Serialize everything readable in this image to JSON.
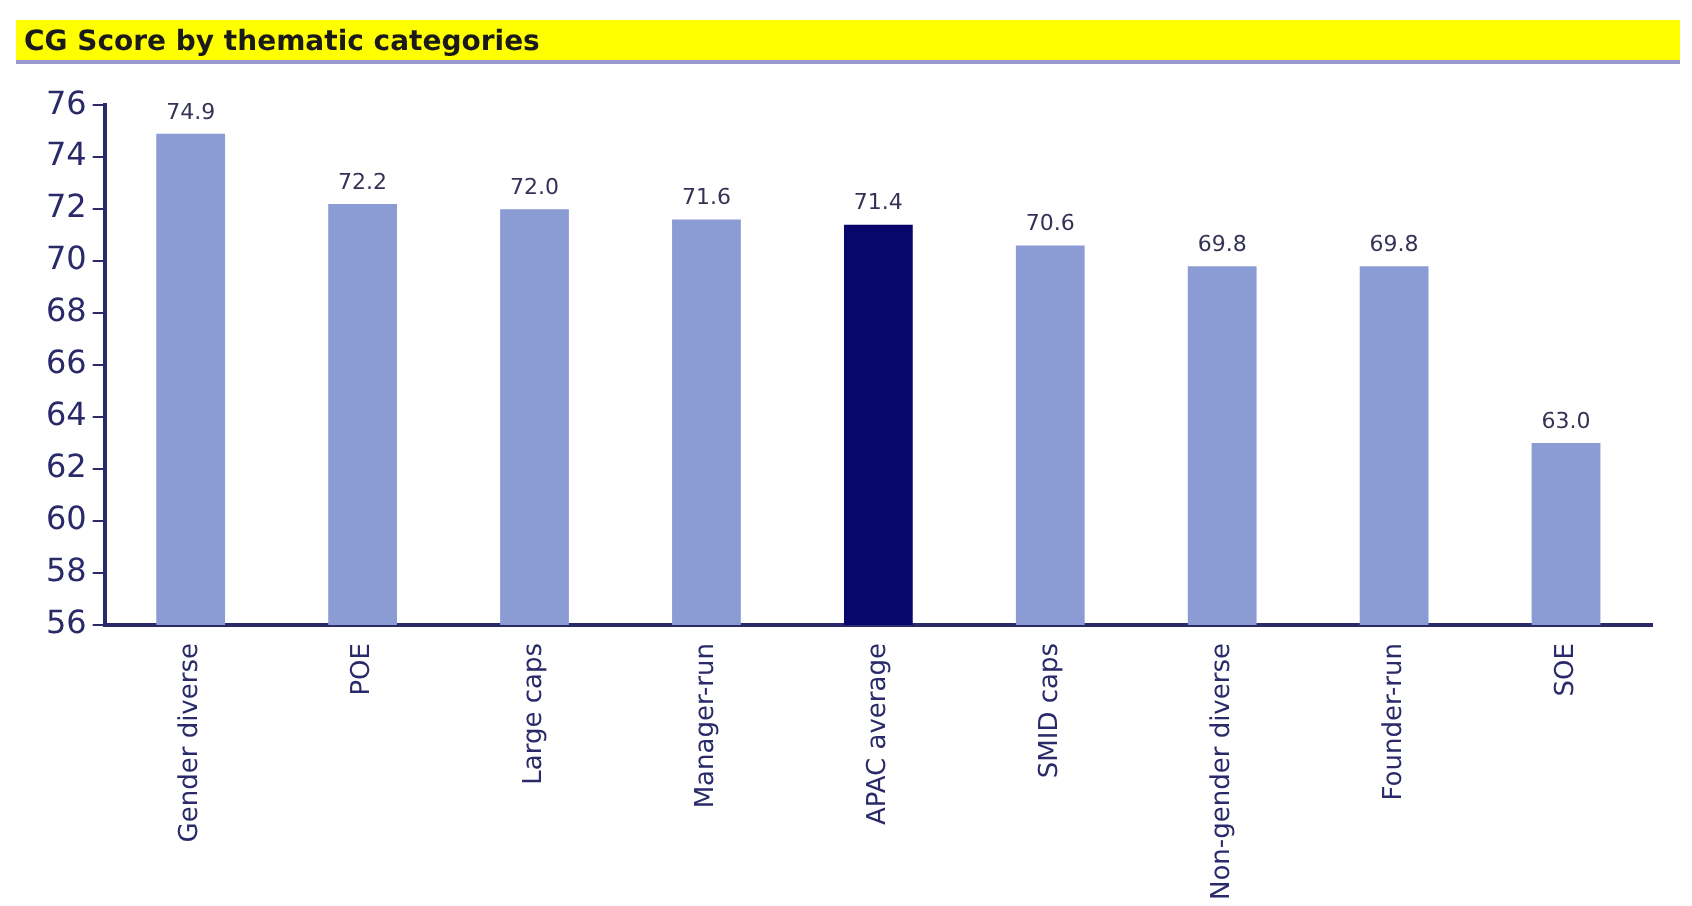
{
  "chart_data": {
    "type": "bar",
    "title": "CG Score by thematic categories",
    "categories": [
      "Gender diverse",
      "POE",
      "Large caps",
      "Manager-run",
      "APAC average",
      "SMID caps",
      "Non-gender diverse",
      "Founder-run",
      "SOE"
    ],
    "values": [
      74.9,
      72.2,
      72.0,
      71.6,
      71.4,
      70.6,
      69.8,
      69.8,
      63.0
    ],
    "value_labels": [
      "74.9",
      "72.2",
      "72.0",
      "71.6",
      "71.4",
      "70.6",
      "69.8",
      "69.8",
      "63.0"
    ],
    "colors": [
      "#8b9bd3",
      "#8b9bd3",
      "#8b9bd3",
      "#8b9bd3",
      "#07076b",
      "#8b9bd3",
      "#8b9bd3",
      "#8b9bd3",
      "#8b9bd3"
    ],
    "ylim": [
      56,
      76
    ],
    "yticks": [
      56,
      58,
      60,
      62,
      64,
      66,
      68,
      70,
      72,
      74,
      76
    ],
    "grid": false,
    "legend": false
  }
}
